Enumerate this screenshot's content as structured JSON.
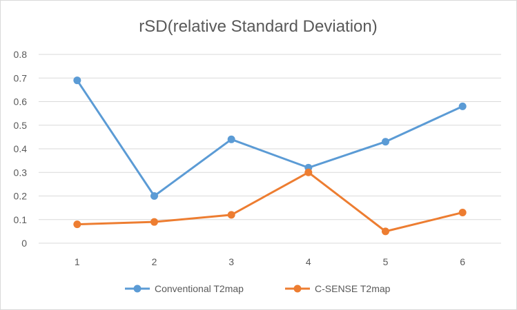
{
  "chart_data": {
    "type": "line",
    "title": "rSD(relative Standard Deviation)",
    "xlabel": "",
    "ylabel": "",
    "categories": [
      "1",
      "2",
      "3",
      "4",
      "5",
      "6"
    ],
    "ylim": [
      0,
      0.8
    ],
    "yticks": [
      "0",
      "0.1",
      "0.2",
      "0.3",
      "0.4",
      "0.5",
      "0.6",
      "0.7",
      "0.8"
    ],
    "grid": true,
    "legend": "bottom",
    "series": [
      {
        "name": "Conventional T2map",
        "color": "#5b9bd5",
        "values": [
          0.69,
          0.2,
          0.44,
          0.32,
          0.43,
          0.58
        ]
      },
      {
        "name": "C-SENSE T2map",
        "color": "#ed7d31",
        "values": [
          0.08,
          0.09,
          0.12,
          0.3,
          0.05,
          0.13
        ]
      }
    ]
  }
}
